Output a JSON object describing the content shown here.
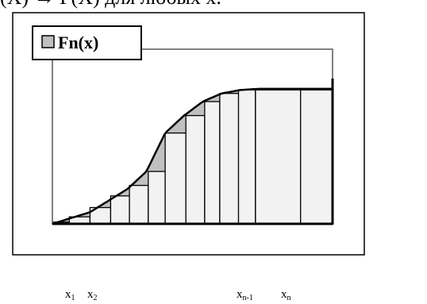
{
  "caption": "(X) → F(X) для любых x.",
  "legend": {
    "label": "Fn(x)"
  },
  "colors": {
    "step_fill": "#f2f2f2",
    "gap_fill": "#c0c0c0",
    "frame_stroke": "#000000",
    "plot_border": "#808080"
  },
  "x_labels": [
    {
      "base": "x",
      "sub": "1"
    },
    {
      "base": "x",
      "sub": "2"
    },
    {
      "base": "x",
      "sub": "n-1"
    },
    {
      "base": "x",
      "sub": "n"
    }
  ],
  "chart_data": {
    "type": "area",
    "series": [
      {
        "name": "Fn(x)",
        "kind": "step",
        "x": [
          0,
          0.45,
          1.0,
          1.55,
          2.05,
          2.55,
          3.0,
          3.55,
          4.05,
          4.45,
          4.95,
          5.4,
          6.6,
          7.45
        ],
        "y": [
          0.015,
          0.06,
          0.14,
          0.24,
          0.33,
          0.45,
          0.78,
          0.93,
          1.05,
          1.12,
          1.15,
          1.15,
          1.15,
          1.15
        ]
      },
      {
        "name": "",
        "kind": "curve",
        "x": [
          0,
          1.0,
          2.0,
          2.5,
          3.0,
          3.5,
          4.0,
          4.5,
          5.0,
          5.5,
          6.0,
          7.45
        ],
        "y": [
          0,
          0.1,
          0.3,
          0.45,
          0.78,
          0.93,
          1.05,
          1.12,
          1.15,
          1.16,
          1.16,
          1.16
        ]
      }
    ],
    "xlim": [
      0,
      7.45
    ],
    "ylim": [
      0,
      1.5
    ]
  }
}
